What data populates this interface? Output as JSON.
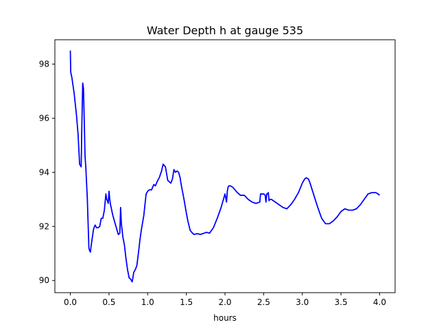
{
  "chart_data": {
    "type": "line",
    "title": "Water Depth h at gauge 535",
    "xlabel": "hours",
    "ylabel": "",
    "xlim": [
      -0.2,
      4.2
    ],
    "ylim": [
      89.55,
      98.9
    ],
    "xticks": [
      0.0,
      0.5,
      1.0,
      1.5,
      2.0,
      2.5,
      3.0,
      3.5,
      4.0
    ],
    "xtick_labels": [
      "0.0",
      "0.5",
      "1.0",
      "1.5",
      "2.0",
      "2.5",
      "3.0",
      "3.5",
      "4.0"
    ],
    "yticks": [
      90,
      92,
      94,
      96,
      98
    ],
    "ytick_labels": [
      "90",
      "92",
      "94",
      "96",
      "98"
    ],
    "grid": false,
    "series": [
      {
        "color": "#0000ff",
        "x": [
          0.0,
          0.005,
          0.02,
          0.05,
          0.08,
          0.1,
          0.12,
          0.14,
          0.15,
          0.16,
          0.17,
          0.18,
          0.19,
          0.2,
          0.22,
          0.24,
          0.25,
          0.26,
          0.27,
          0.28,
          0.3,
          0.32,
          0.34,
          0.36,
          0.38,
          0.4,
          0.42,
          0.44,
          0.46,
          0.47,
          0.48,
          0.49,
          0.5,
          0.51,
          0.52,
          0.55,
          0.58,
          0.6,
          0.62,
          0.64,
          0.65,
          0.66,
          0.68,
          0.7,
          0.72,
          0.74,
          0.76,
          0.78,
          0.8,
          0.82,
          0.84,
          0.86,
          0.88,
          0.9,
          0.92,
          0.95,
          0.98,
          1.0,
          1.02,
          1.05,
          1.08,
          1.1,
          1.13,
          1.15,
          1.18,
          1.2,
          1.23,
          1.26,
          1.28,
          1.3,
          1.32,
          1.34,
          1.36,
          1.38,
          1.4,
          1.42,
          1.43,
          1.45,
          1.47,
          1.5,
          1.52,
          1.55,
          1.58,
          1.6,
          1.62,
          1.65,
          1.68,
          1.7,
          1.73,
          1.76,
          1.8,
          1.85,
          1.9,
          1.95,
          2.0,
          2.02,
          2.03,
          2.04,
          2.05,
          2.07,
          2.1,
          2.13,
          2.16,
          2.2,
          2.25,
          2.3,
          2.35,
          2.4,
          2.45,
          2.46,
          2.5,
          2.52,
          2.53,
          2.54,
          2.55,
          2.56,
          2.57,
          2.58,
          2.6,
          2.65,
          2.7,
          2.75,
          2.8,
          2.85,
          2.9,
          2.95,
          3.0,
          3.03,
          3.05,
          3.08,
          3.1,
          3.15,
          3.2,
          3.25,
          3.3,
          3.35,
          3.4,
          3.45,
          3.5,
          3.55,
          3.6,
          3.65,
          3.7,
          3.75,
          3.8,
          3.85,
          3.9,
          3.95,
          3.98,
          4.0
        ],
        "values": [
          98.5,
          97.7,
          97.5,
          96.9,
          96.1,
          95.4,
          94.3,
          94.2,
          95.9,
          97.3,
          97.1,
          95.9,
          94.6,
          94.2,
          93.0,
          91.2,
          91.1,
          91.05,
          91.3,
          91.5,
          91.9,
          92.05,
          91.95,
          91.95,
          92.0,
          92.3,
          92.3,
          92.6,
          93.2,
          93.0,
          92.95,
          92.85,
          93.3,
          93.0,
          92.8,
          92.4,
          92.1,
          91.9,
          91.7,
          91.75,
          92.7,
          92.1,
          91.6,
          91.3,
          90.8,
          90.4,
          90.1,
          90.05,
          89.95,
          90.3,
          90.4,
          90.55,
          91.0,
          91.5,
          91.9,
          92.4,
          93.2,
          93.3,
          93.35,
          93.35,
          93.55,
          93.5,
          93.7,
          93.8,
          94.05,
          94.3,
          94.2,
          93.7,
          93.65,
          93.6,
          93.75,
          94.1,
          94.0,
          94.05,
          94.0,
          93.8,
          93.6,
          93.3,
          93.0,
          92.5,
          92.2,
          91.85,
          91.75,
          91.7,
          91.72,
          91.73,
          91.7,
          91.72,
          91.75,
          91.78,
          91.75,
          91.95,
          92.3,
          92.7,
          93.2,
          92.9,
          93.3,
          93.45,
          93.5,
          93.5,
          93.45,
          93.35,
          93.25,
          93.15,
          93.15,
          93.0,
          92.9,
          92.85,
          92.9,
          93.2,
          93.2,
          93.15,
          92.9,
          93.2,
          93.2,
          93.25,
          92.95,
          93.0,
          93.0,
          92.9,
          92.8,
          92.7,
          92.65,
          92.8,
          93.0,
          93.25,
          93.6,
          93.75,
          93.8,
          93.75,
          93.6,
          93.15,
          92.7,
          92.3,
          92.1,
          92.1,
          92.2,
          92.35,
          92.55,
          92.65,
          92.6,
          92.6,
          92.65,
          92.8,
          93.0,
          93.2,
          93.25,
          93.25,
          93.2,
          93.15
        ]
      }
    ]
  }
}
